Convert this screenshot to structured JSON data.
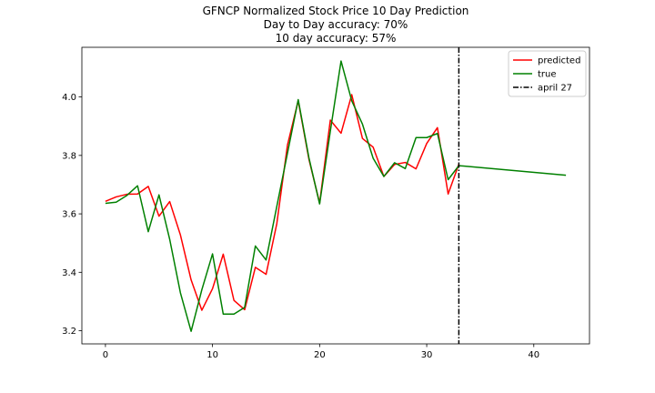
{
  "chart_data": {
    "type": "line",
    "title_lines": [
      "GFNCP Normalized Stock Price 10 Day Prediction",
      "Day to Day accuracy: 70%",
      "10 day accuracy: 57%"
    ],
    "xlabel": "",
    "ylabel": "",
    "xlim": [
      -2.2,
      45.2
    ],
    "ylim": [
      3.155,
      4.17
    ],
    "xticks": [
      0,
      10,
      20,
      30,
      40
    ],
    "yticks": [
      3.2,
      3.4,
      3.6,
      3.8,
      4.0
    ],
    "ytick_labels": [
      "3.2",
      "3.4",
      "3.6",
      "3.8",
      "4.0"
    ],
    "grid": false,
    "legend_position": "top-right",
    "series": [
      {
        "name": "predicted",
        "color": "#ff0000",
        "x": [
          0,
          1,
          2,
          3,
          4,
          5,
          6,
          7,
          8,
          9,
          10,
          11,
          12,
          13,
          14,
          15,
          16,
          17,
          18,
          19,
          20,
          21,
          22,
          23,
          24,
          25,
          26,
          27,
          28,
          29,
          30,
          31,
          32,
          33
        ],
        "y": [
          3.643,
          3.658,
          3.667,
          3.668,
          3.694,
          3.592,
          3.642,
          3.528,
          3.374,
          3.27,
          3.344,
          3.462,
          3.304,
          3.272,
          3.417,
          3.393,
          3.566,
          3.836,
          3.987,
          3.787,
          3.637,
          3.921,
          3.876,
          4.008,
          3.858,
          3.828,
          3.728,
          3.769,
          3.776,
          3.754,
          3.841,
          3.895,
          3.668,
          3.77
        ]
      },
      {
        "name": "true",
        "color": "#008000",
        "x": [
          0,
          1,
          2,
          3,
          4,
          5,
          6,
          7,
          8,
          9,
          10,
          11,
          12,
          13,
          14,
          15,
          16,
          17,
          18,
          19,
          20,
          21,
          22,
          23,
          24,
          25,
          26,
          27,
          28,
          29,
          30,
          31,
          32,
          33,
          43
        ],
        "y": [
          3.636,
          3.64,
          3.663,
          3.696,
          3.539,
          3.665,
          3.513,
          3.33,
          3.198,
          3.34,
          3.463,
          3.257,
          3.257,
          3.28,
          3.49,
          3.442,
          3.625,
          3.808,
          3.991,
          3.792,
          3.634,
          3.883,
          4.123,
          3.987,
          3.907,
          3.79,
          3.728,
          3.775,
          3.755,
          3.861,
          3.861,
          3.875,
          3.717,
          3.765,
          3.732
        ]
      }
    ],
    "vline": {
      "x": 33,
      "label": "april 27",
      "color": "#000000",
      "style": "dashdot"
    }
  }
}
